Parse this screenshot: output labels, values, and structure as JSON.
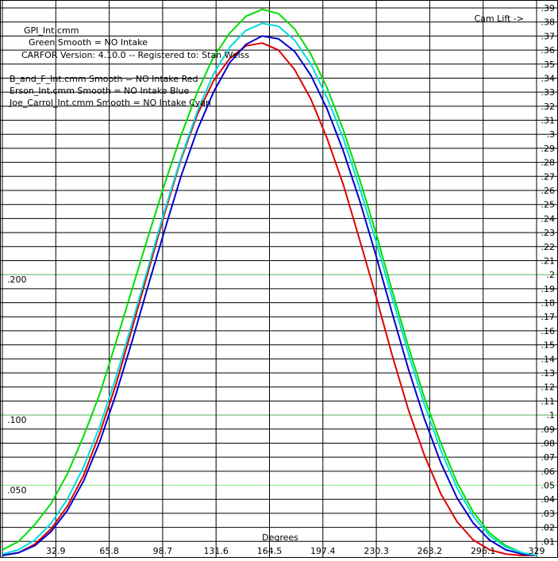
{
  "chart_data": {
    "type": "line",
    "header_lines": [
      "GPI_Int.cmm",
      "Green  Smooth = NO    Intake",
      "CARFOR Version: 4.10.0 -- Registered to:  Stan Weiss"
    ],
    "legend_lines": [
      "B_and_F_Int.cmm    Smooth = NO  Intake  Red",
      "Erson_Int.cmm     Smooth = NO  Intake  Blue",
      "Joe_Carrol_Int.cmm    Smooth = NO  Intake  Cyan"
    ],
    "ylabel": "Cam Lift ->",
    "xlabel": "Degrees",
    "x_range": [
      0,
      329
    ],
    "y_range": [
      0,
      0.39
    ],
    "x_tick_labels": [
      "32.9",
      "65.8",
      "98.7",
      "131.6",
      "164.5",
      "197.4",
      "230.3",
      "263.2",
      "296.1",
      "329"
    ],
    "x_tick_values": [
      32.9,
      65.8,
      98.7,
      131.6,
      164.5,
      197.4,
      230.3,
      263.2,
      296.1,
      329
    ],
    "y_tick_labels": [
      ".01",
      ".02",
      ".03",
      ".04",
      ".05",
      ".06",
      ".07",
      ".08",
      ".09",
      ".1",
      ".11",
      ".12",
      ".13",
      ".14",
      ".15",
      ".16",
      ".17",
      ".18",
      ".19",
      ".2",
      ".21",
      ".22",
      ".23",
      ".24",
      ".25",
      ".26",
      ".27",
      ".28",
      ".29",
      ".3",
      ".31",
      ".32",
      ".33",
      ".34",
      ".35",
      ".36",
      ".37",
      ".38",
      ".39"
    ],
    "y_tick_values": [
      0.01,
      0.02,
      0.03,
      0.04,
      0.05,
      0.06,
      0.07,
      0.08,
      0.09,
      0.1,
      0.11,
      0.12,
      0.13,
      0.14,
      0.15,
      0.16,
      0.17,
      0.18,
      0.19,
      0.2,
      0.21,
      0.22,
      0.23,
      0.24,
      0.25,
      0.26,
      0.27,
      0.28,
      0.29,
      0.3,
      0.31,
      0.32,
      0.33,
      0.34,
      0.35,
      0.36,
      0.37,
      0.38,
      0.39
    ],
    "left_ref_labels": [
      ".200",
      ".100",
      ".050"
    ],
    "left_ref_values": [
      0.2,
      0.1,
      0.05
    ],
    "ref_line_color": "#88dd88",
    "grid": true,
    "series": [
      {
        "name": "GPI_Int.cmm",
        "color": "#00dd00",
        "x": [
          0,
          10,
          20,
          30,
          40,
          50,
          60,
          70,
          80,
          90,
          100,
          110,
          120,
          130,
          140,
          150,
          160,
          170,
          180,
          190,
          200,
          210,
          220,
          230,
          240,
          250,
          260,
          270,
          280,
          290,
          300,
          310,
          320,
          329
        ],
        "y": [
          0.004,
          0.01,
          0.022,
          0.037,
          0.058,
          0.085,
          0.115,
          0.152,
          0.19,
          0.228,
          0.265,
          0.299,
          0.33,
          0.355,
          0.372,
          0.384,
          0.389,
          0.386,
          0.375,
          0.357,
          0.333,
          0.303,
          0.268,
          0.23,
          0.189,
          0.149,
          0.112,
          0.08,
          0.052,
          0.031,
          0.016,
          0.007,
          0.002,
          0.0
        ]
      },
      {
        "name": "B_and_F_Int.cmm",
        "color": "#dd0000",
        "x": [
          0,
          10,
          20,
          30,
          40,
          50,
          60,
          70,
          80,
          90,
          100,
          110,
          120,
          130,
          140,
          150,
          160,
          170,
          180,
          190,
          200,
          210,
          220,
          230,
          240,
          250,
          260,
          270,
          280,
          290,
          300,
          310,
          320,
          329
        ],
        "y": [
          0.0,
          0.002,
          0.008,
          0.019,
          0.035,
          0.057,
          0.087,
          0.122,
          0.162,
          0.203,
          0.244,
          0.282,
          0.314,
          0.338,
          0.354,
          0.363,
          0.365,
          0.36,
          0.346,
          0.325,
          0.297,
          0.264,
          0.225,
          0.185,
          0.143,
          0.104,
          0.071,
          0.044,
          0.024,
          0.011,
          0.004,
          0.001,
          0.0,
          0.0
        ]
      },
      {
        "name": "Erson_Int.cmm",
        "color": "#0000cc",
        "x": [
          0,
          10,
          20,
          30,
          40,
          50,
          60,
          70,
          80,
          90,
          100,
          110,
          120,
          130,
          140,
          150,
          160,
          170,
          180,
          190,
          200,
          210,
          220,
          230,
          240,
          250,
          260,
          270,
          280,
          290,
          300,
          310,
          320,
          329
        ],
        "y": [
          0.0,
          0.002,
          0.007,
          0.017,
          0.032,
          0.053,
          0.081,
          0.115,
          0.153,
          0.193,
          0.232,
          0.27,
          0.303,
          0.33,
          0.351,
          0.364,
          0.37,
          0.368,
          0.359,
          0.342,
          0.318,
          0.288,
          0.253,
          0.214,
          0.173,
          0.133,
          0.097,
          0.066,
          0.041,
          0.023,
          0.011,
          0.004,
          0.001,
          0.0
        ]
      },
      {
        "name": "Joe_Carrol_Int.cmm",
        "color": "#00dddd",
        "x": [
          0,
          10,
          20,
          30,
          40,
          50,
          60,
          70,
          80,
          90,
          100,
          110,
          120,
          130,
          140,
          150,
          160,
          170,
          180,
          190,
          200,
          210,
          220,
          230,
          240,
          250,
          260,
          270,
          280,
          290,
          300,
          310,
          320,
          329
        ],
        "y": [
          0.001,
          0.004,
          0.011,
          0.023,
          0.04,
          0.063,
          0.092,
          0.127,
          0.166,
          0.206,
          0.246,
          0.283,
          0.316,
          0.343,
          0.362,
          0.374,
          0.379,
          0.377,
          0.367,
          0.35,
          0.326,
          0.297,
          0.262,
          0.224,
          0.184,
          0.144,
          0.107,
          0.075,
          0.048,
          0.028,
          0.014,
          0.006,
          0.002,
          0.0
        ]
      }
    ]
  }
}
